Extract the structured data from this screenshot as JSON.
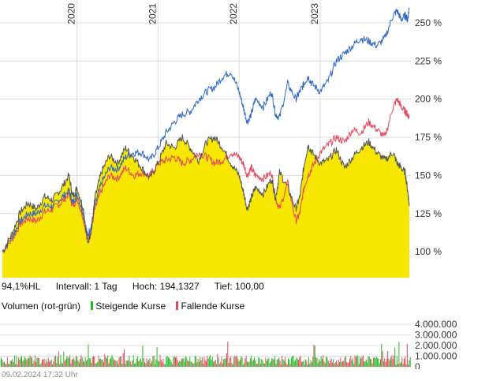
{
  "chart_data": [
    {
      "type": "area",
      "x_ticks": [
        "2020",
        "2021",
        "2022",
        "2023"
      ],
      "y_ticks": [
        "100 %",
        "125 %",
        "150 %",
        "175 %",
        "200 %",
        "225 %",
        "250 %"
      ],
      "ylim": [
        83,
        265
      ],
      "xlim": [
        2019.05,
        2024.12
      ],
      "grid": true,
      "series": [
        {
          "style": "yellow-area-dark-outline",
          "color": "#f6e600",
          "x": [
            2019.08,
            2019.2,
            2019.3,
            2019.4,
            2019.5,
            2019.6,
            2019.7,
            2019.8,
            2019.9,
            2019.95,
            2020.0,
            2020.08,
            2020.13,
            2020.18,
            2020.22,
            2020.3,
            2020.4,
            2020.5,
            2020.6,
            2020.7,
            2020.8,
            2020.9,
            2021.0,
            2021.1,
            2021.2,
            2021.3,
            2021.4,
            2021.5,
            2021.6,
            2021.7,
            2021.8,
            2021.9,
            2022.0,
            2022.05,
            2022.1,
            2022.15,
            2022.2,
            2022.3,
            2022.4,
            2022.45,
            2022.5,
            2022.6,
            2022.7,
            2022.75,
            2022.8,
            2022.85,
            2022.9,
            2023.0,
            2023.1,
            2023.2,
            2023.3,
            2023.4,
            2023.5,
            2023.6,
            2023.7,
            2023.8,
            2023.9,
            2023.95,
            2024.0,
            2024.05,
            2024.08,
            2024.1
          ],
          "y": [
            100,
            112,
            126,
            132,
            128,
            136,
            134,
            141,
            150,
            136,
            142,
            128,
            105,
            115,
            135,
            152,
            163,
            158,
            168,
            162,
            155,
            148,
            158,
            171,
            168,
            175,
            168,
            160,
            172,
            175,
            168,
            158,
            150,
            140,
            128,
            135,
            142,
            138,
            148,
            135,
            152,
            142,
            128,
            136,
            156,
            170,
            165,
            158,
            160,
            167,
            155,
            162,
            168,
            172,
            165,
            160,
            165,
            158,
            155,
            152,
            140,
            130
          ]
        },
        {
          "style": "line",
          "color": "#2e67c8",
          "x": [
            2019.08,
            2019.2,
            2019.3,
            2019.4,
            2019.5,
            2019.6,
            2019.7,
            2019.8,
            2019.9,
            2019.95,
            2020.0,
            2020.08,
            2020.13,
            2020.18,
            2020.22,
            2020.3,
            2020.4,
            2020.5,
            2020.6,
            2020.7,
            2020.8,
            2020.9,
            2021.0,
            2021.1,
            2021.2,
            2021.3,
            2021.4,
            2021.5,
            2021.6,
            2021.7,
            2021.8,
            2021.9,
            2022.0,
            2022.05,
            2022.1,
            2022.15,
            2022.2,
            2022.3,
            2022.4,
            2022.45,
            2022.5,
            2022.6,
            2022.7,
            2022.75,
            2022.8,
            2022.85,
            2022.9,
            2023.0,
            2023.1,
            2023.2,
            2023.3,
            2023.4,
            2023.5,
            2023.6,
            2023.7,
            2023.8,
            2023.9,
            2023.95,
            2024.0,
            2024.05,
            2024.08,
            2024.1
          ],
          "y": [
            100,
            110,
            120,
            125,
            125,
            130,
            130,
            135,
            140,
            132,
            138,
            125,
            110,
            118,
            130,
            145,
            155,
            154,
            162,
            165,
            165,
            160,
            168,
            178,
            185,
            190,
            192,
            200,
            205,
            208,
            215,
            218,
            205,
            195,
            185,
            190,
            200,
            195,
            205,
            190,
            188,
            210,
            200,
            205,
            210,
            215,
            210,
            205,
            212,
            225,
            230,
            235,
            240,
            238,
            235,
            240,
            255,
            258,
            252,
            255,
            252,
            260
          ]
        },
        {
          "style": "line",
          "color": "#e8485d",
          "x": [
            2019.08,
            2019.2,
            2019.3,
            2019.4,
            2019.5,
            2019.6,
            2019.7,
            2019.8,
            2019.9,
            2019.95,
            2020.0,
            2020.08,
            2020.13,
            2020.18,
            2020.22,
            2020.3,
            2020.4,
            2020.5,
            2020.6,
            2020.7,
            2020.8,
            2020.9,
            2021.0,
            2021.1,
            2021.2,
            2021.3,
            2021.4,
            2021.5,
            2021.6,
            2021.7,
            2021.8,
            2021.9,
            2022.0,
            2022.05,
            2022.1,
            2022.15,
            2022.2,
            2022.3,
            2022.4,
            2022.45,
            2022.5,
            2022.6,
            2022.7,
            2022.75,
            2022.8,
            2022.85,
            2022.9,
            2023.0,
            2023.1,
            2023.2,
            2023.3,
            2023.4,
            2023.5,
            2023.6,
            2023.7,
            2023.8,
            2023.9,
            2023.95,
            2024.0,
            2024.05,
            2024.08,
            2024.1
          ],
          "y": [
            100,
            108,
            118,
            122,
            120,
            126,
            128,
            132,
            138,
            130,
            135,
            122,
            108,
            115,
            128,
            140,
            150,
            148,
            155,
            150,
            152,
            150,
            158,
            160,
            162,
            158,
            160,
            165,
            162,
            158,
            160,
            165,
            162,
            158,
            150,
            155,
            150,
            148,
            152,
            135,
            128,
            145,
            120,
            125,
            142,
            150,
            155,
            165,
            170,
            175,
            172,
            180,
            178,
            185,
            180,
            175,
            195,
            200,
            195,
            192,
            190,
            188
          ]
        }
      ]
    },
    {
      "type": "bar",
      "y_ticks": [
        "0",
        "1.000.000",
        "2.000.000",
        "3.000.000",
        "4.000.000"
      ],
      "ylim": [
        0,
        4300000
      ],
      "up_color": "#22bb22",
      "down_color": "#e8485d"
    }
  ],
  "stats": {
    "change": "94,1%HL",
    "interval": "Intervall: 1 Tag",
    "high": "Hoch: 194,1327",
    "low": "Tief:  100,00"
  },
  "volume_legend": {
    "title": "Volumen (rot-grün)",
    "up": "Steigende Kurse",
    "down": "Fallende Kurse"
  },
  "footer": "09.02.2024 17:32 Uhr"
}
